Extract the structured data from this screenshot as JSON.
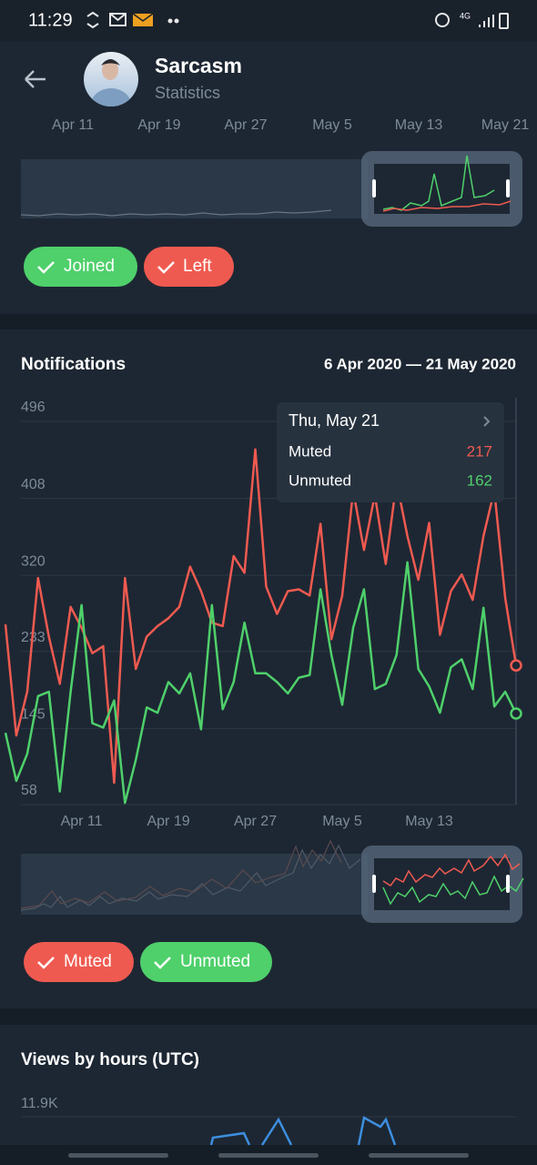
{
  "status_bar": {
    "time": "11:29",
    "network": "4G"
  },
  "header": {
    "title": "Sarcasm",
    "subtitle": "Statistics"
  },
  "members_section": {
    "x_labels": [
      "Apr 11",
      "Apr 19",
      "Apr 27",
      "May 5",
      "May 13",
      "May 21"
    ],
    "chips": [
      "Joined",
      "Left"
    ]
  },
  "chart_data": {
    "type": "line",
    "title": "Notifications",
    "subtitle": "6 Apr 2020 — 21 May 2020",
    "tooltip_title": "Thu, May 21",
    "categories": [
      null,
      null,
      null,
      null,
      null,
      null,
      null,
      "Apr 11",
      null,
      null,
      null,
      null,
      null,
      null,
      null,
      "Apr 19",
      null,
      null,
      null,
      null,
      null,
      null,
      null,
      "Apr 27",
      null,
      null,
      null,
      null,
      null,
      null,
      null,
      "May 5",
      null,
      null,
      null,
      null,
      null,
      null,
      null,
      "May 13",
      null,
      null,
      null,
      null,
      null,
      null,
      null,
      null
    ],
    "series": [
      {
        "name": "Muted",
        "color": "#ef5a50",
        "values": [
          264,
          137,
          187,
          317,
          250,
          196,
          284,
          260,
          231,
          239,
          83,
          317,
          213,
          250,
          262,
          271,
          284,
          330,
          302,
          266,
          262,
          342,
          323,
          464,
          307,
          276,
          302,
          304,
          297,
          379,
          247,
          297,
          417,
          349,
          412,
          333,
          427,
          365,
          315,
          380,
          252,
          302,
          321,
          292,
          365,
          417,
          294,
          217
        ]
      },
      {
        "name": "Unmuted",
        "color": "#4fd06b",
        "values": [
          140,
          85,
          116,
          182,
          187,
          73,
          187,
          286,
          151,
          146,
          177,
          60,
          109,
          169,
          163,
          198,
          185,
          208,
          144,
          286,
          167,
          198,
          266,
          208,
          208,
          198,
          185,
          203,
          206,
          304,
          229,
          172,
          260,
          304,
          190,
          196,
          229,
          335,
          213,
          193,
          163,
          215,
          224,
          190,
          283,
          170,
          187,
          162
        ]
      }
    ],
    "ylim": [
      58,
      496
    ],
    "yticks": [
      58,
      145,
      233,
      320,
      408,
      496
    ],
    "grid": true
  },
  "views_section": {
    "title": "Views by hours (UTC)",
    "y_label": "11.9K"
  }
}
